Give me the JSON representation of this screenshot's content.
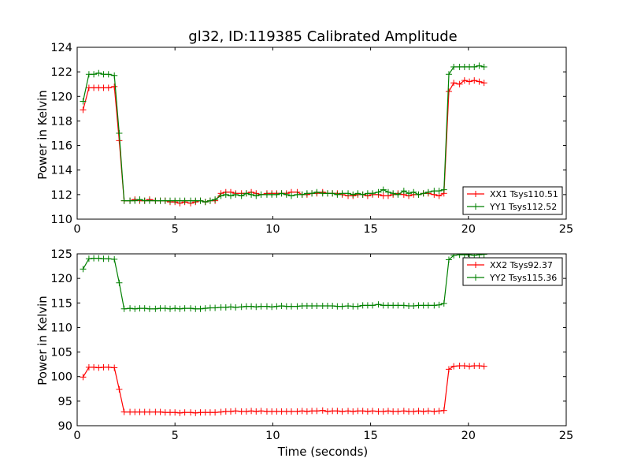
{
  "figure": {
    "title": "gl32, ID:119385 Calibrated Amplitude",
    "xlabel": "Time (seconds)"
  },
  "chart_data": [
    {
      "type": "line",
      "ylabel": "Power in Kelvin",
      "xlim": [
        0,
        25
      ],
      "ylim": [
        110,
        124
      ],
      "xticks": [
        "0",
        "5",
        "10",
        "15",
        "20",
        "25"
      ],
      "yticks": [
        "110",
        "112",
        "114",
        "116",
        "118",
        "120",
        "122",
        "124"
      ],
      "legend_position": "lower-right",
      "x": [
        0.3,
        0.6,
        0.85,
        1.1,
        1.35,
        1.6,
        1.9,
        2.15,
        2.4,
        2.7,
        2.95,
        3.2,
        3.45,
        3.7,
        4.0,
        4.25,
        4.5,
        4.75,
        5.0,
        5.25,
        5.5,
        5.8,
        6.05,
        6.3,
        6.55,
        6.8,
        7.05,
        7.35,
        7.6,
        7.85,
        8.1,
        8.4,
        8.65,
        8.9,
        9.15,
        9.4,
        9.7,
        9.95,
        10.2,
        10.45,
        10.7,
        10.95,
        11.25,
        11.5,
        11.75,
        12.0,
        12.25,
        12.55,
        12.8,
        13.05,
        13.3,
        13.55,
        13.85,
        14.1,
        14.35,
        14.6,
        14.85,
        15.1,
        15.4,
        15.65,
        15.9,
        16.15,
        16.4,
        16.7,
        16.95,
        17.2,
        17.45,
        17.7,
        17.95,
        18.25,
        18.5,
        18.75,
        19.0,
        19.25,
        19.55,
        19.8,
        20.05,
        20.3,
        20.55,
        20.8
      ],
      "series": [
        {
          "name": "XX1 Tsys110.51",
          "color": "#ff0000",
          "values": [
            118.9,
            120.7,
            120.7,
            120.7,
            120.7,
            120.7,
            120.8,
            116.4,
            111.5,
            111.5,
            111.6,
            111.5,
            111.5,
            111.6,
            111.5,
            111.5,
            111.5,
            111.4,
            111.4,
            111.3,
            111.4,
            111.3,
            111.4,
            111.5,
            111.4,
            111.5,
            111.5,
            112.1,
            112.2,
            112.2,
            112.1,
            112.1,
            112.1,
            112.2,
            112.1,
            112.0,
            112.1,
            112.1,
            112.1,
            112.1,
            112.1,
            112.2,
            112.2,
            112.0,
            112.0,
            112.1,
            112.1,
            112.2,
            112.1,
            112.1,
            112.1,
            112.0,
            111.9,
            111.9,
            112.0,
            112.0,
            111.9,
            112.0,
            112.0,
            111.9,
            111.9,
            112.0,
            112.1,
            112.0,
            111.9,
            112.0,
            112.0,
            112.1,
            112.1,
            112.0,
            111.9,
            112.1,
            120.4,
            121.1,
            121.0,
            121.3,
            121.2,
            121.3,
            121.2,
            121.1
          ]
        },
        {
          "name": "YY1 Tsys112.52",
          "color": "#008000",
          "values": [
            119.6,
            121.8,
            121.8,
            121.9,
            121.8,
            121.8,
            121.7,
            117.0,
            111.5,
            111.5,
            111.5,
            111.6,
            111.5,
            111.5,
            111.5,
            111.5,
            111.5,
            111.5,
            111.5,
            111.5,
            111.5,
            111.5,
            111.5,
            111.5,
            111.4,
            111.5,
            111.6,
            111.9,
            112.0,
            111.9,
            112.0,
            111.9,
            112.1,
            112.0,
            111.9,
            112.0,
            112.0,
            112.0,
            112.0,
            112.1,
            112.0,
            111.9,
            112.0,
            112.0,
            112.1,
            112.1,
            112.2,
            112.1,
            112.1,
            112.1,
            112.0,
            112.1,
            112.1,
            112.0,
            112.1,
            112.0,
            112.1,
            112.1,
            112.2,
            112.4,
            112.2,
            112.1,
            112.0,
            112.3,
            112.1,
            112.2,
            112.0,
            112.1,
            112.2,
            112.3,
            112.3,
            112.4,
            121.8,
            122.4,
            122.4,
            122.4,
            122.4,
            122.4,
            122.5,
            122.4
          ]
        }
      ]
    },
    {
      "type": "line",
      "ylabel": "Power in Kelvin",
      "xlim": [
        0,
        25
      ],
      "ylim": [
        90,
        125
      ],
      "xticks": [
        "0",
        "5",
        "10",
        "15",
        "20",
        "25"
      ],
      "yticks": [
        "90",
        "95",
        "100",
        "105",
        "110",
        "115",
        "120",
        "125"
      ],
      "legend_position": "upper-right",
      "x": [
        0.3,
        0.6,
        0.85,
        1.1,
        1.35,
        1.6,
        1.9,
        2.15,
        2.4,
        2.7,
        2.95,
        3.2,
        3.45,
        3.7,
        4.0,
        4.25,
        4.5,
        4.75,
        5.0,
        5.25,
        5.5,
        5.8,
        6.05,
        6.3,
        6.55,
        6.8,
        7.05,
        7.35,
        7.6,
        7.85,
        8.1,
        8.4,
        8.65,
        8.9,
        9.15,
        9.4,
        9.7,
        9.95,
        10.2,
        10.45,
        10.7,
        10.95,
        11.25,
        11.5,
        11.75,
        12.0,
        12.25,
        12.55,
        12.8,
        13.05,
        13.3,
        13.55,
        13.85,
        14.1,
        14.35,
        14.6,
        14.85,
        15.1,
        15.4,
        15.65,
        15.9,
        16.15,
        16.4,
        16.7,
        16.95,
        17.2,
        17.45,
        17.7,
        17.95,
        18.25,
        18.5,
        18.75,
        19.0,
        19.25,
        19.55,
        19.8,
        20.05,
        20.3,
        20.55,
        20.8
      ],
      "series": [
        {
          "name": "XX2 Tsys92.37",
          "color": "#ff0000",
          "values": [
            99.9,
            101.9,
            101.9,
            101.8,
            101.9,
            101.9,
            101.8,
            97.4,
            92.8,
            92.8,
            92.8,
            92.8,
            92.8,
            92.8,
            92.8,
            92.8,
            92.7,
            92.7,
            92.7,
            92.6,
            92.7,
            92.7,
            92.6,
            92.7,
            92.7,
            92.7,
            92.7,
            92.8,
            92.9,
            92.9,
            93.0,
            92.9,
            92.9,
            93.0,
            92.9,
            93.0,
            92.9,
            92.9,
            92.9,
            92.9,
            92.9,
            92.9,
            92.9,
            93.0,
            92.9,
            93.0,
            93.0,
            93.1,
            92.9,
            93.0,
            93.0,
            92.9,
            93.0,
            92.9,
            93.0,
            93.0,
            92.9,
            93.0,
            92.9,
            92.9,
            93.0,
            92.9,
            92.9,
            93.0,
            92.9,
            92.9,
            93.0,
            92.9,
            93.0,
            92.9,
            93.0,
            93.1,
            101.5,
            102.1,
            102.2,
            102.2,
            102.1,
            102.2,
            102.2,
            102.1
          ]
        },
        {
          "name": "YY2 Tsys115.36",
          "color": "#008000",
          "values": [
            121.9,
            124.0,
            124.1,
            124.1,
            124.0,
            124.0,
            123.9,
            119.1,
            113.8,
            113.9,
            113.8,
            113.9,
            113.9,
            113.8,
            113.8,
            113.9,
            113.9,
            113.8,
            113.9,
            113.8,
            113.9,
            113.9,
            113.8,
            113.8,
            113.9,
            114.0,
            114.0,
            114.1,
            114.1,
            114.2,
            114.1,
            114.2,
            114.3,
            114.3,
            114.2,
            114.3,
            114.3,
            114.2,
            114.3,
            114.4,
            114.3,
            114.3,
            114.3,
            114.4,
            114.4,
            114.4,
            114.4,
            114.4,
            114.4,
            114.4,
            114.3,
            114.3,
            114.4,
            114.3,
            114.3,
            114.5,
            114.5,
            114.5,
            114.7,
            114.5,
            114.5,
            114.5,
            114.5,
            114.5,
            114.4,
            114.4,
            114.5,
            114.5,
            114.5,
            114.5,
            114.6,
            114.9,
            123.8,
            124.7,
            124.8,
            124.8,
            124.8,
            124.7,
            124.8,
            124.9
          ]
        }
      ]
    }
  ]
}
